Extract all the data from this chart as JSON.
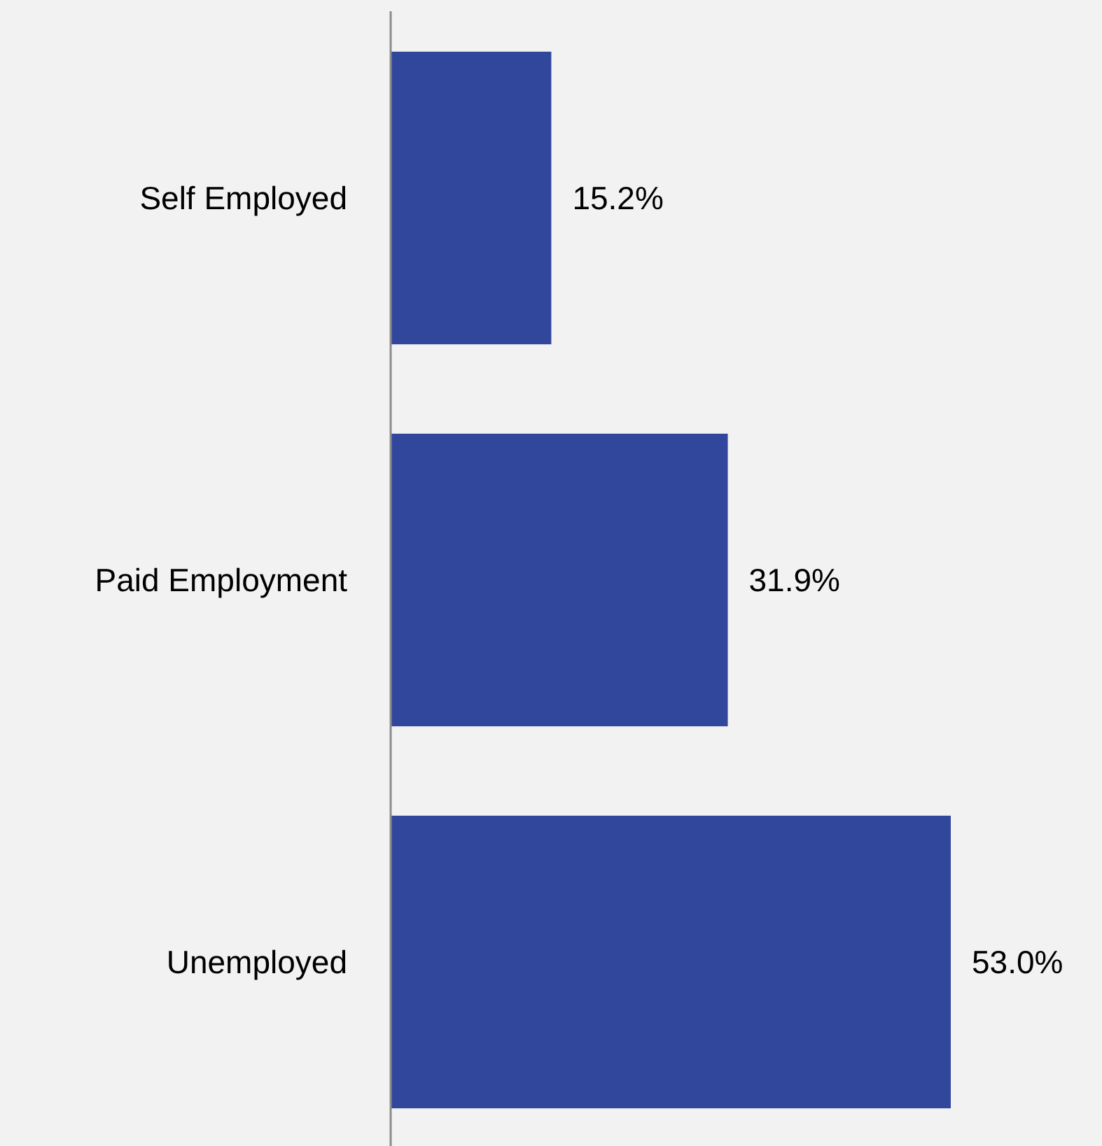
{
  "chart_data": {
    "type": "bar",
    "orientation": "horizontal",
    "categories": [
      "Self Employed",
      "Paid Employment",
      "Unemployed"
    ],
    "values": [
      15.2,
      31.9,
      53.0
    ],
    "value_labels": [
      "15.2%",
      "31.9%",
      "53.0%"
    ],
    "color": "#31479b"
  }
}
